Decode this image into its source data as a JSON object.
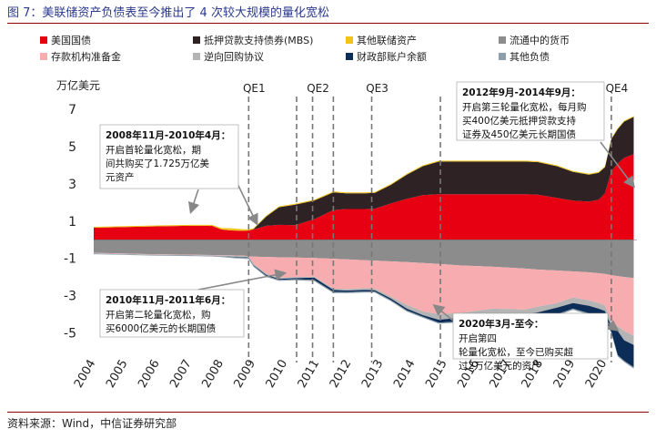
{
  "figure_title": "图 7：美联储资产负债表至今推出了 4 次较大规模的量化宽松",
  "source": "资料来源：Wind，中信证券研究部",
  "colors": {
    "treasuries": "#e60012",
    "mbs": "#2e2224",
    "other_assets": "#f0c419",
    "currency": "#8c8c8c",
    "reserves": "#f7adb0",
    "reverse_repo": "#b4b4b4",
    "tga": "#0b2d57",
    "other_liab": "#8e9fab",
    "title": "#2b3a8c",
    "rule": "#8b0000"
  },
  "chart_data": {
    "type": "area",
    "ylabel": "万亿美元",
    "ylim": [
      -6.3,
      7.5
    ],
    "yticks": [
      -5,
      -3,
      -1,
      1,
      3,
      5,
      7
    ],
    "xlim": [
      2004,
      2021.0
    ],
    "xticks": [
      "2004",
      "2005",
      "2006",
      "2007",
      "2008",
      "2009",
      "2010",
      "2011",
      "2012",
      "2013",
      "2014",
      "2015",
      "2016",
      "2017",
      "2018",
      "2019",
      "2020"
    ],
    "x": [
      2004,
      2006,
      2007,
      2007.7,
      2008.0,
      2008.3,
      2008.7,
      2008.85,
      2009.0,
      2009.4,
      2009.8,
      2010.3,
      2010.9,
      2011.5,
      2011.9,
      2012.5,
      2012.8,
      2013.3,
      2013.8,
      2014.3,
      2014.8,
      2015.5,
      2016.5,
      2017.5,
      2017.9,
      2018.5,
      2019.0,
      2019.5,
      2019.8,
      2020.0,
      2020.2,
      2020.4,
      2020.6,
      2020.9
    ],
    "series": [
      {
        "name": "美国国债",
        "key": "treasuries",
        "side": "assets",
        "values": [
          0.65,
          0.72,
          0.75,
          0.75,
          0.55,
          0.5,
          0.48,
          0.5,
          0.55,
          0.75,
          0.8,
          0.78,
          1.1,
          1.6,
          1.65,
          1.65,
          1.67,
          1.95,
          2.2,
          2.4,
          2.45,
          2.45,
          2.45,
          2.45,
          2.42,
          2.25,
          2.1,
          2.05,
          2.15,
          2.5,
          3.7,
          4.1,
          4.4,
          4.6
        ]
      },
      {
        "name": "抵押贷款支持债券(MBS)",
        "key": "mbs",
        "side": "assets",
        "values": [
          0,
          0,
          0,
          0,
          0,
          0,
          0,
          0,
          0.02,
          0.5,
          0.95,
          1.1,
          1.0,
          0.95,
          0.85,
          0.85,
          0.85,
          1.0,
          1.3,
          1.55,
          1.75,
          1.75,
          1.75,
          1.75,
          1.75,
          1.7,
          1.55,
          1.45,
          1.45,
          1.4,
          1.7,
          1.85,
          1.95,
          2.0
        ]
      },
      {
        "name": "其他联储资产",
        "key": "other_assets",
        "side": "assets",
        "values": [
          0.05,
          0.05,
          0.05,
          0.05,
          0.08,
          0.12,
          0.08,
          0.06,
          0.05,
          0.05,
          0.05,
          0.05,
          0.05,
          0.05,
          0.05,
          0.05,
          0.05,
          0.05,
          0.05,
          0.05,
          0.05,
          0.05,
          0.05,
          0.05,
          0.05,
          0.05,
          0.05,
          0.05,
          0.05,
          0.05,
          0.05,
          0.05,
          0.05,
          0.05
        ]
      },
      {
        "name": "流通中的货币",
        "key": "currency",
        "side": "liabilities",
        "values": [
          0.7,
          0.78,
          0.8,
          0.82,
          0.83,
          0.84,
          0.86,
          0.88,
          0.9,
          0.92,
          0.94,
          0.95,
          0.98,
          1.02,
          1.05,
          1.1,
          1.12,
          1.16,
          1.2,
          1.25,
          1.3,
          1.38,
          1.45,
          1.55,
          1.6,
          1.65,
          1.7,
          1.75,
          1.8,
          1.83,
          1.9,
          1.95,
          2.0,
          2.05
        ]
      },
      {
        "name": "存款机构准备金",
        "key": "reserves",
        "side": "liabilities",
        "values": [
          0.02,
          0.02,
          0.02,
          0.02,
          0.02,
          0.02,
          0.02,
          0.02,
          0.4,
          0.9,
          1.1,
          1.05,
          1.0,
          1.6,
          1.6,
          1.5,
          1.5,
          1.9,
          2.3,
          2.6,
          2.7,
          2.55,
          2.25,
          2.2,
          2.0,
          1.75,
          1.4,
          1.5,
          1.6,
          1.7,
          2.5,
          2.7,
          2.9,
          3.1
        ]
      },
      {
        "name": "逆向回购协议",
        "key": "reverse_repo",
        "side": "liabilities",
        "values": [
          0.02,
          0.02,
          0.02,
          0.02,
          0.03,
          0.05,
          0.05,
          0.05,
          0.06,
          0.06,
          0.06,
          0.06,
          0.06,
          0.08,
          0.08,
          0.1,
          0.1,
          0.1,
          0.2,
          0.2,
          0.3,
          0.25,
          0.35,
          0.25,
          0.3,
          0.25,
          0.3,
          0.3,
          0.3,
          0.3,
          0.25,
          0.25,
          0.5,
          0.5
        ]
      },
      {
        "name": "财政部账户余额",
        "key": "tga",
        "side": "liabilities",
        "values": [
          0.005,
          0.005,
          0.005,
          0.005,
          0.01,
          0.02,
          0.03,
          0.03,
          0.03,
          0.06,
          0.05,
          0.06,
          0.12,
          0.1,
          0.08,
          0.08,
          0.06,
          0.08,
          0.1,
          0.08,
          0.15,
          0.2,
          0.35,
          0.25,
          0.3,
          0.35,
          0.3,
          0.4,
          0.4,
          0.45,
          0.3,
          1.3,
          1.1,
          1.2
        ]
      },
      {
        "name": "其他负债",
        "key": "other_liab",
        "side": "liabilities",
        "values": [
          0.03,
          0.03,
          0.03,
          0.03,
          0.04,
          0.05,
          0.06,
          0.06,
          0.06,
          0.06,
          0.06,
          0.06,
          0.06,
          0.06,
          0.06,
          0.06,
          0.06,
          0.06,
          0.06,
          0.06,
          0.06,
          0.06,
          0.07,
          0.07,
          0.07,
          0.07,
          0.07,
          0.07,
          0.07,
          0.07,
          0.07,
          0.07,
          0.07,
          0.07
        ]
      }
    ],
    "qe_lines": [
      {
        "label": "QE1",
        "x": 2008.85
      },
      {
        "label": "",
        "x": 2010.35
      },
      {
        "label": "QE2",
        "x": 2010.85
      },
      {
        "label": "",
        "x": 2011.5
      },
      {
        "label": "QE3",
        "x": 2012.7
      },
      {
        "label": "",
        "x": 2014.85
      },
      {
        "label": "QE4",
        "x": 2020.2
      }
    ],
    "annotations": [
      {
        "key": "qe1",
        "title": "2008年11月-2010年4月：",
        "lines": [
          "开启首轮量化宽松，期",
          "间共购买了1.725万亿美",
          "元资产"
        ]
      },
      {
        "key": "qe2",
        "title": "2010年11月-2011年6月：",
        "lines": [
          "开启第二轮量化宽松，购",
          "买6000亿美元的长期国债"
        ]
      },
      {
        "key": "qe3",
        "title": "2012年9月-2014年9月：",
        "lines": [
          "开启第三轮量化宽松，每月购",
          "买400亿美元抵押贷款支持",
          "证券及450亿美元长期国债"
        ]
      },
      {
        "key": "qe4",
        "title": "2020年3月-至今：",
        "lines": [
          "开启第四",
          "轮量化宽松，至今已购买超",
          "过2万亿美元的资产"
        ]
      }
    ]
  }
}
